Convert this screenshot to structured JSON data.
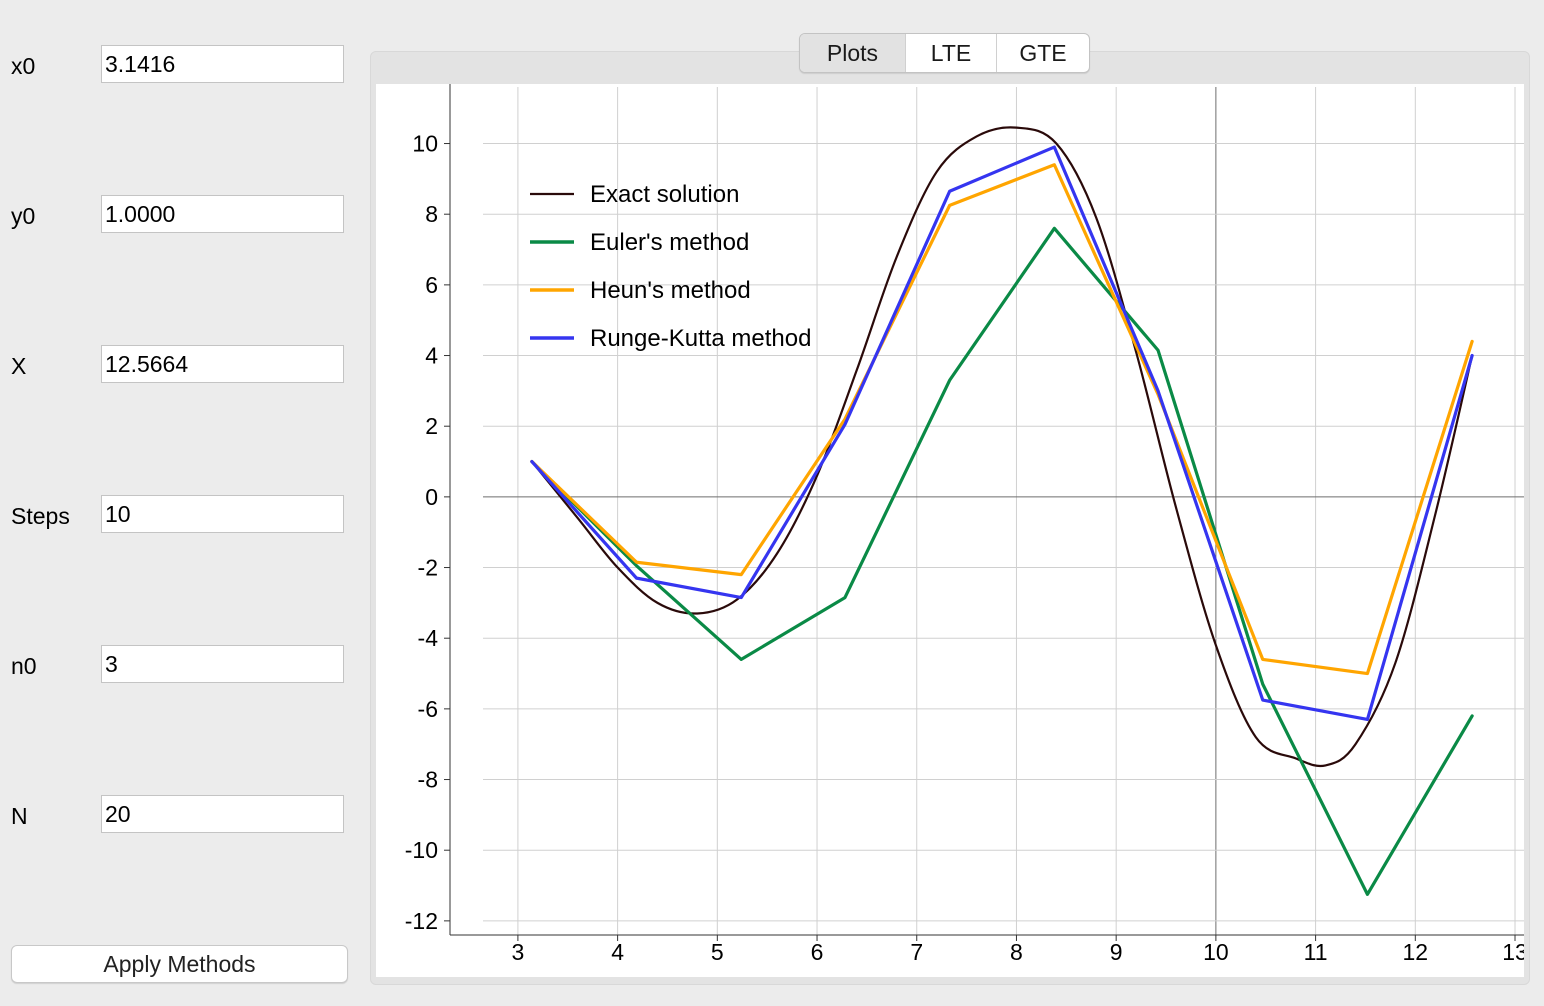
{
  "form": {
    "fields": [
      {
        "label": "x0",
        "value": "3.1416"
      },
      {
        "label": "y0",
        "value": "1.0000"
      },
      {
        "label": "X",
        "value": "12.5664"
      },
      {
        "label": "Steps",
        "value": "10"
      },
      {
        "label": "n0",
        "value": "3"
      },
      {
        "label": "N",
        "value": "20"
      }
    ],
    "apply_label": "Apply Methods"
  },
  "tabs": [
    {
      "label": "Plots",
      "selected": true
    },
    {
      "label": "LTE",
      "selected": false
    },
    {
      "label": "GTE",
      "selected": false
    }
  ],
  "chart_data": {
    "type": "line",
    "title": "",
    "xlabel": "",
    "ylabel": "",
    "xlim": [
      2.65,
      13.05
    ],
    "ylim": [
      -12.4,
      11.6
    ],
    "xticks": [
      3,
      4,
      5,
      6,
      7,
      8,
      9,
      10,
      11,
      12,
      13
    ],
    "yticks": [
      10,
      8,
      6,
      4,
      2,
      0,
      -2,
      -4,
      -6,
      -8,
      -10,
      -12
    ],
    "grid": true,
    "legend_position": "top-left",
    "series": [
      {
        "name": "Exact solution",
        "color": "#2a0a0a",
        "style": "smooth",
        "x": [
          3.14,
          3.6,
          4.0,
          4.4,
          4.8,
          5.2,
          5.6,
          6.0,
          6.4,
          6.8,
          7.2,
          7.6,
          8.0,
          8.4,
          8.8,
          9.2,
          9.6,
          10.0,
          10.4,
          10.8,
          11.1,
          11.4,
          11.8,
          12.2,
          12.57
        ],
        "y": [
          1.0,
          -0.6,
          -2.0,
          -3.0,
          -3.3,
          -2.9,
          -1.6,
          0.6,
          3.6,
          6.8,
          9.2,
          10.2,
          10.45,
          10.0,
          7.9,
          4.1,
          -0.3,
          -4.2,
          -6.8,
          -7.4,
          -7.6,
          -7.0,
          -4.7,
          -0.5,
          4.0
        ]
      },
      {
        "name": "Euler's method",
        "color": "#0a8a46",
        "x": [
          3.14,
          4.19,
          5.24,
          6.28,
          7.33,
          8.38,
          9.42,
          10.47,
          11.52,
          12.57
        ],
        "y": [
          1.0,
          -1.95,
          -4.6,
          -2.85,
          3.3,
          7.6,
          4.15,
          -5.3,
          -11.25,
          -6.2
        ]
      },
      {
        "name": "Heun's method",
        "color": "#ffa500",
        "x": [
          3.14,
          4.19,
          5.24,
          6.28,
          7.33,
          8.38,
          9.42,
          10.47,
          11.52,
          12.57
        ],
        "y": [
          1.0,
          -1.85,
          -2.2,
          2.2,
          8.25,
          9.4,
          2.9,
          -4.6,
          -5.0,
          4.4
        ]
      },
      {
        "name": "Runge-Kutta method",
        "color": "#3535f0",
        "x": [
          3.14,
          4.19,
          5.24,
          6.28,
          7.33,
          8.38,
          9.42,
          10.47,
          11.52,
          12.57
        ],
        "y": [
          1.0,
          -2.3,
          -2.85,
          2.05,
          8.65,
          9.9,
          3.0,
          -5.75,
          -6.3,
          4.0
        ]
      }
    ]
  }
}
